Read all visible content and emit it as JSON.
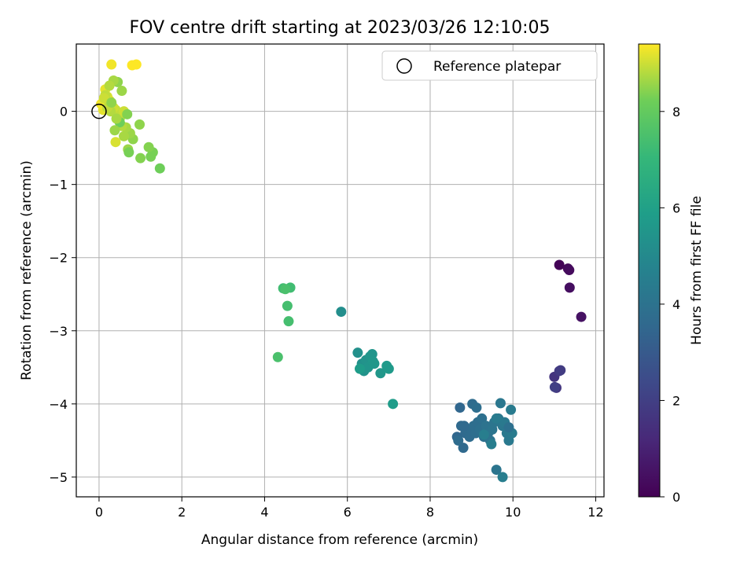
{
  "chart_data": {
    "type": "scatter",
    "title": "FOV centre drift starting at 2023/03/26 12:10:05",
    "xlabel": "Angular distance from reference (arcmin)",
    "ylabel": "Rotation from reference (arcmin)",
    "xlim": [
      -0.55,
      12.2
    ],
    "ylim": [
      -5.27,
      0.92
    ],
    "xticks": [
      0,
      2,
      4,
      6,
      8,
      10,
      12
    ],
    "yticks": [
      0,
      -1,
      -2,
      -3,
      -4,
      -5
    ],
    "grid": true,
    "legend": {
      "location": "top-right",
      "entries": [
        "Reference platepar"
      ]
    },
    "reference_point": {
      "x": 0,
      "y": 0,
      "marker": "open-circle"
    },
    "colorbar": {
      "label": "Hours from first FF file",
      "colormap": "viridis",
      "min": 0,
      "max": 9.4,
      "ticks": [
        0,
        2,
        4,
        6,
        8
      ]
    },
    "series": [
      {
        "hours": [
          0.1,
          0.2,
          0.3,
          0.4,
          0.5,
          1.6,
          1.7,
          1.8,
          1.9,
          2.0
        ],
        "x": [
          11.12,
          11.33,
          11.36,
          11.37,
          11.65,
          11.0,
          11.05,
          11.12,
          11.15,
          11.01
        ],
        "y": [
          -2.1,
          -2.15,
          -2.17,
          -2.41,
          -2.81,
          -3.63,
          -3.78,
          -3.55,
          -3.54,
          -3.77
        ]
      },
      {
        "hours": [
          3.5,
          3.5,
          3.6,
          3.6,
          3.6,
          3.7,
          3.7,
          3.7,
          3.8,
          3.8,
          3.8,
          3.9,
          3.9,
          3.9,
          4.0,
          4.0,
          4.0,
          4.1,
          4.1,
          4.1,
          4.2,
          4.2,
          4.2,
          4.3,
          4.3,
          4.3,
          4.4,
          4.4,
          4.4,
          4.5,
          4.5,
          4.5,
          3.6,
          3.7,
          3.8,
          3.9
        ],
        "x": [
          8.65,
          8.72,
          8.75,
          8.8,
          8.85,
          8.9,
          8.95,
          9.02,
          9.05,
          9.1,
          9.15,
          9.2,
          9.25,
          9.3,
          9.35,
          9.4,
          9.45,
          9.5,
          9.55,
          9.6,
          9.65,
          9.7,
          9.75,
          9.8,
          9.85,
          9.9,
          9.95,
          9.98,
          9.6,
          9.75,
          9.48,
          9.3,
          8.82,
          8.68,
          9.12,
          9.9
        ],
        "y": [
          -4.45,
          -4.05,
          -4.3,
          -4.6,
          -4.4,
          -4.35,
          -4.45,
          -4.0,
          -4.3,
          -4.4,
          -4.25,
          -4.35,
          -4.2,
          -4.45,
          -4.3,
          -4.4,
          -4.5,
          -4.35,
          -4.25,
          -4.9,
          -4.2,
          -3.99,
          -4.3,
          -4.25,
          -4.4,
          -4.5,
          -4.08,
          -4.4,
          -4.2,
          -5.0,
          -4.55,
          -4.42,
          -4.3,
          -4.5,
          -4.05,
          -4.32
        ]
      },
      {
        "hours": [
          5.2,
          5.3,
          5.3,
          5.4,
          5.4,
          5.5,
          5.5,
          5.5,
          5.6,
          5.6,
          5.6,
          5.7,
          5.7,
          5.8,
          5.8
        ],
        "x": [
          5.85,
          6.25,
          6.35,
          6.4,
          6.45,
          6.5,
          6.55,
          6.6,
          6.62,
          6.65,
          6.8,
          6.95,
          7.0,
          7.1,
          6.3
        ],
        "y": [
          -2.74,
          -3.3,
          -3.45,
          -3.55,
          -3.4,
          -3.5,
          -3.35,
          -3.32,
          -3.42,
          -3.45,
          -3.58,
          -3.48,
          -3.52,
          -4.0,
          -3.52
        ]
      },
      {
        "hours": [
          7.3,
          7.3,
          7.4,
          7.4,
          7.5,
          7.5
        ],
        "x": [
          4.45,
          4.62,
          4.55,
          4.58,
          4.32,
          4.5
        ],
        "y": [
          -2.42,
          -2.41,
          -2.66,
          -2.87,
          -3.36,
          -2.43
        ]
      },
      {
        "hours": [
          8.2,
          8.3,
          8.3,
          8.4,
          8.4,
          8.5,
          8.5,
          8.6,
          8.6,
          8.7,
          8.7,
          8.8,
          8.8,
          8.9,
          8.9,
          9.0,
          9.0,
          9.1,
          9.1,
          9.2,
          9.2,
          9.3,
          9.3,
          9.4,
          9.4,
          8.5,
          8.6,
          8.7,
          8.8,
          8.9,
          9.0,
          9.1,
          8.4,
          8.3,
          8.2,
          8.6,
          8.8,
          9.0,
          8.7,
          8.9,
          8.5
        ],
        "x": [
          1.47,
          1.3,
          1.25,
          1.2,
          1.0,
          0.98,
          0.82,
          0.7,
          0.75,
          0.65,
          0.6,
          0.55,
          0.5,
          0.45,
          0.4,
          0.35,
          0.3,
          0.25,
          0.2,
          0.15,
          0.1,
          0.05,
          0.3,
          0.8,
          0.9,
          0.45,
          0.55,
          0.35,
          0.25,
          0.15,
          0.6,
          0.4,
          0.68,
          0.72,
          0.5,
          0.38,
          0.28,
          0.12,
          0.42,
          0.2,
          0.3
        ],
        "y": [
          -0.78,
          -0.56,
          -0.62,
          -0.49,
          -0.64,
          -0.18,
          -0.38,
          -0.52,
          -0.3,
          -0.22,
          -0.34,
          -0.2,
          -0.1,
          -0.05,
          0.02,
          0.05,
          0.1,
          0.15,
          0.2,
          0.3,
          0.02,
          0.1,
          0.64,
          0.63,
          0.64,
          0.4,
          0.28,
          0.42,
          0.35,
          0.22,
          0.0,
          -0.42,
          -0.04,
          -0.56,
          -0.15,
          -0.26,
          0.0,
          0.18,
          -0.1,
          0.05,
          0.12
        ]
      }
    ]
  }
}
